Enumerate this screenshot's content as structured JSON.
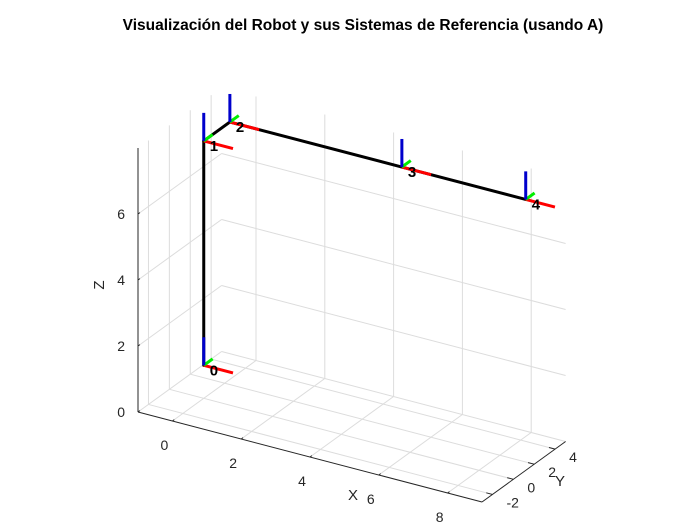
{
  "chart_data": {
    "type": "line3d",
    "title": "Visualización del Robot y sus Sistemas de Referencia (usando A)",
    "xlabel": "X",
    "ylabel": "Y",
    "zlabel": "Z",
    "xlim": [
      -1,
      9
    ],
    "ylim": [
      -3,
      5
    ],
    "zlim": [
      0,
      8
    ],
    "xticks": [
      "0",
      "2",
      "4",
      "6",
      "8"
    ],
    "yticks": [
      "-2",
      "0",
      "2",
      "4"
    ],
    "zticks": [
      "0",
      "2",
      "4",
      "6"
    ],
    "grid": true,
    "robot_links": {
      "color": "#000000",
      "points": [
        {
          "x": 0,
          "y": 0,
          "z": 1
        },
        {
          "x": 0,
          "y": 0,
          "z": 7.8
        },
        {
          "x": 0,
          "y": 2.5,
          "z": 7.8
        },
        {
          "x": 5,
          "y": 2.5,
          "z": 7.8
        },
        {
          "x": 8.6,
          "y": 2.5,
          "z": 7.8
        }
      ]
    },
    "frames": [
      {
        "label": "0",
        "x": 0,
        "y": 0,
        "z": 1
      },
      {
        "label": "1",
        "x": 0,
        "y": 0,
        "z": 7.8
      },
      {
        "label": "2",
        "x": 0,
        "y": 2.5,
        "z": 7.8
      },
      {
        "label": "3",
        "x": 5,
        "y": 2.5,
        "z": 7.8
      },
      {
        "label": "4",
        "x": 8.6,
        "y": 2.5,
        "z": 7.8
      }
    ],
    "axis_colors": {
      "x": "#ff0000",
      "y": "#00ee00",
      "z": "#0000cc"
    }
  }
}
